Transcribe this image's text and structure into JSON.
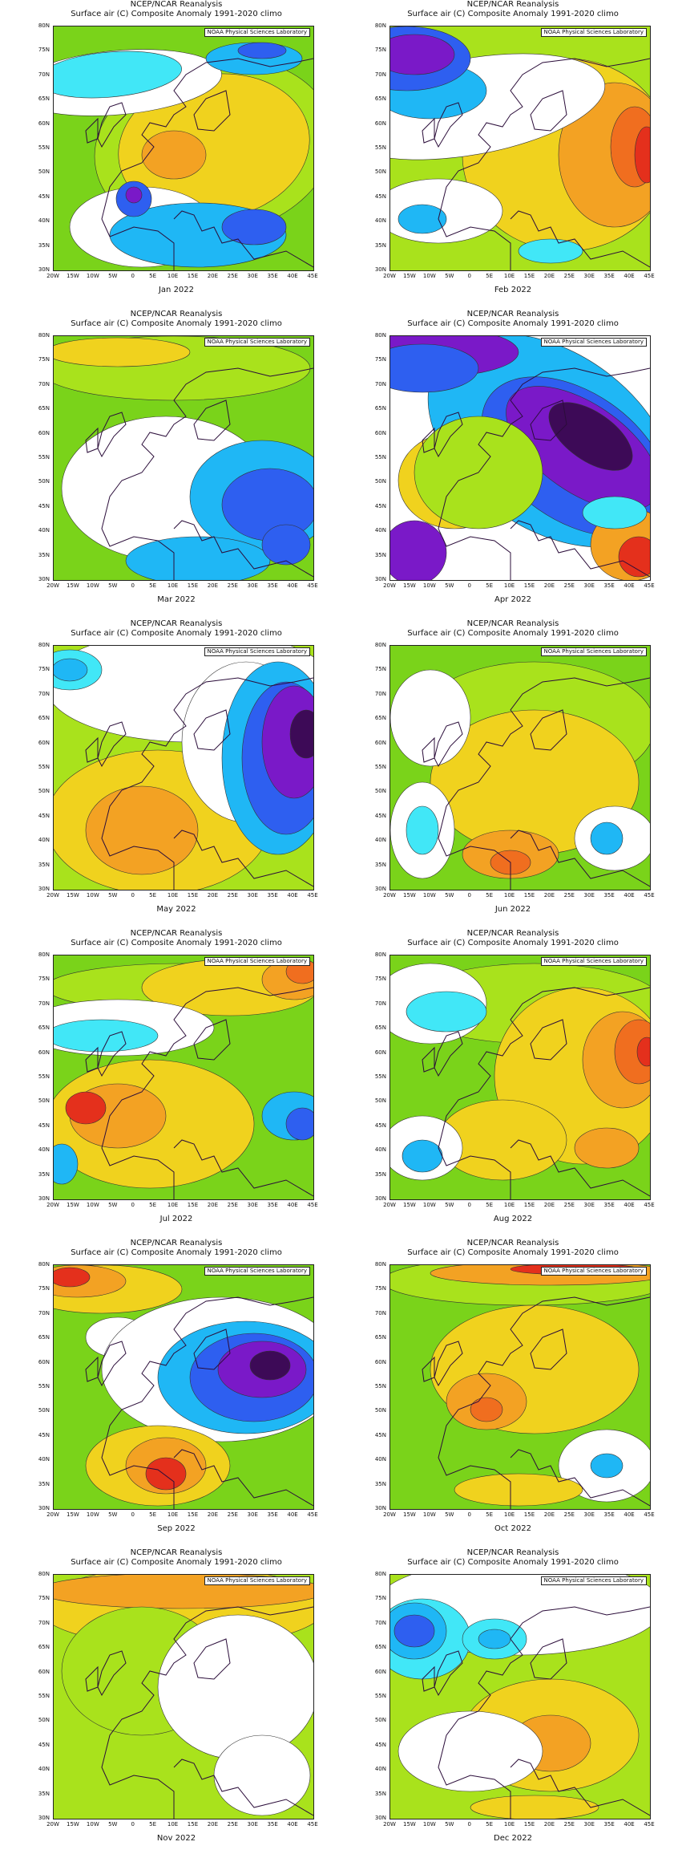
{
  "header_line1": "NCEP/NCAR Reanalysis",
  "header_line2": "Surface air (C) Composite Anomaly 1991-2020 climo",
  "credit": "NOAA Physical Sciences Laboratory",
  "lat_labels": [
    "80N",
    "75N",
    "70N",
    "65N",
    "60N",
    "55N",
    "50N",
    "45N",
    "40N",
    "35N",
    "30N"
  ],
  "lon_labels": [
    "20W",
    "15W",
    "10W",
    "5W",
    "0",
    "5E",
    "10E",
    "15E",
    "20E",
    "25E",
    "30E",
    "35E",
    "40E",
    "45E"
  ],
  "colors": {
    "dark_purple": "#3d0a57",
    "purple": "#7a19c8",
    "blue": "#2e5ff0",
    "light_blue": "#1fb7f5",
    "cyan": "#41e7f7",
    "white": "#ffffff",
    "green": "#7ad31a",
    "light_green": "#a9e21c",
    "yellow": "#f0d21e",
    "orange": "#f3a223",
    "dark_orange": "#f06e1f",
    "red": "#e4301c"
  },
  "panels": [
    {
      "month": "Jan 2022"
    },
    {
      "month": "Feb 2022"
    },
    {
      "month": "Mar 2022"
    },
    {
      "month": "Apr 2022"
    },
    {
      "month": "May 2022"
    },
    {
      "month": "Jun 2022"
    },
    {
      "month": "Jul 2022"
    },
    {
      "month": "Aug 2022"
    },
    {
      "month": "Sep 2022"
    },
    {
      "month": "Oct 2022"
    },
    {
      "month": "Nov 2022"
    },
    {
      "month": "Dec 2022"
    }
  ]
}
